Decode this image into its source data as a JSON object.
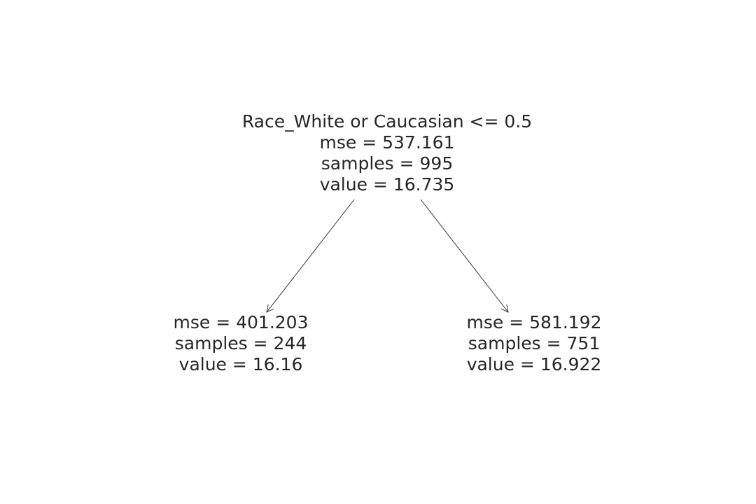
{
  "root": {
    "split": "Race_White or Caucasian <= 0.5",
    "mse": "mse = 537.161",
    "samples": "samples = 995",
    "value": "value = 16.735"
  },
  "left_leaf": {
    "mse": "mse = 401.203",
    "samples": "samples = 244",
    "value": "value = 16.16"
  },
  "right_leaf": {
    "mse": "mse = 581.192",
    "samples": "samples = 751",
    "value": "value = 16.922"
  },
  "colors": {
    "text": "#262626",
    "edge": "#333333",
    "background": "#ffffff"
  }
}
